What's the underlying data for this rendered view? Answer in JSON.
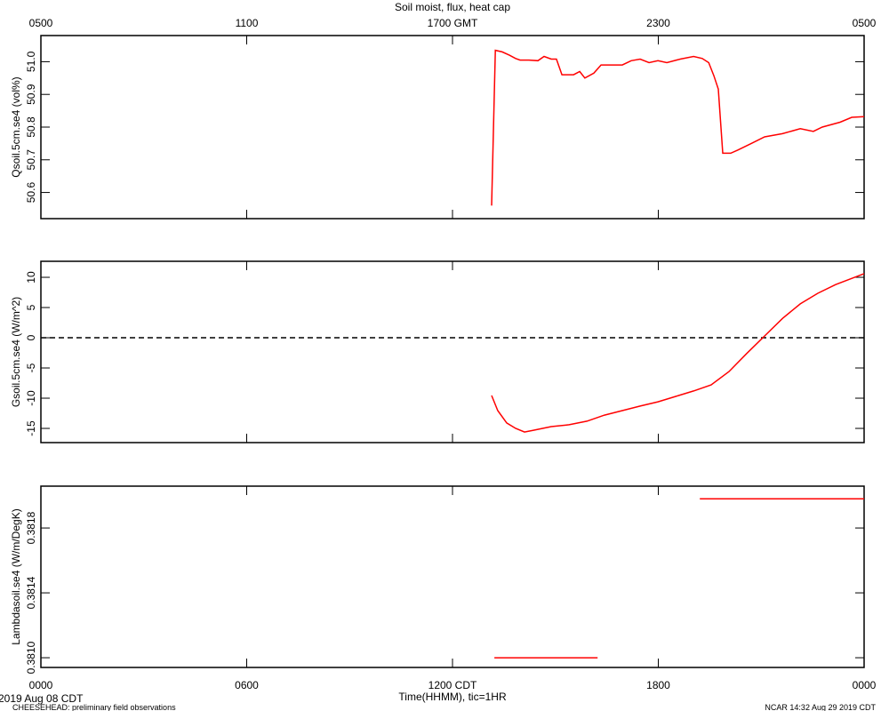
{
  "chart_data": [
    {
      "type": "line",
      "title": "Soil moist, flux, heat cap",
      "ylabel": "Qsoil.5cm.se4 (vol%)",
      "xlim": [
        0,
        24
      ],
      "ylim": [
        50.52,
        51.08
      ],
      "yticks": [
        50.6,
        50.7,
        50.8,
        50.9,
        {
          "value": 51,
          "label": "51.0"
        }
      ],
      "xticks_top": [
        {
          "value": 0,
          "label": "0500"
        },
        {
          "value": 6,
          "label": "1100"
        },
        {
          "value": 12,
          "label": "1700 GMT"
        },
        {
          "value": 18,
          "label": "2300"
        },
        {
          "value": 24,
          "label": "0500"
        }
      ],
      "series": [
        {
          "color": "#ff0000",
          "x": [
            13.14,
            13.25,
            13.45,
            13.66,
            13.84,
            13.97,
            14.23,
            14.49,
            14.67,
            14.88,
            15.03,
            15.19,
            15.53,
            15.71,
            15.86,
            16.12,
            16.33,
            16.95,
            17.21,
            17.47,
            17.73,
            17.99,
            18.25,
            18.64,
            19.03,
            19.28,
            19.47,
            19.62,
            19.75,
            19.88,
            20.11,
            20.32,
            20.71,
            21.1,
            21.62,
            22.14,
            22.52,
            22.78,
            23.3,
            23.64,
            24.0
          ],
          "values": [
            50.56,
            51.035,
            51.03,
            51.02,
            51.01,
            51.005,
            51.005,
            51.003,
            51.016,
            51.008,
            51.008,
            50.96,
            50.96,
            50.97,
            50.95,
            50.965,
            50.99,
            50.99,
            51.003,
            51.008,
            50.997,
            51.003,
            50.997,
            51.008,
            51.016,
            51.01,
            50.997,
            50.957,
            50.916,
            50.72,
            50.72,
            50.73,
            50.75,
            50.77,
            50.78,
            50.795,
            50.787,
            50.8,
            50.815,
            50.83,
            50.832
          ]
        }
      ]
    },
    {
      "type": "line",
      "ylabel": "Gsoil.5cm.se4 (W/m^2)",
      "xlim": [
        0,
        24
      ],
      "ylim": [
        -17.35,
        12.65
      ],
      "yticks": [
        -15,
        -10,
        -5,
        0,
        5,
        10
      ],
      "hline": 0,
      "series": [
        {
          "color": "#ff0000",
          "x": [
            13.14,
            13.32,
            13.58,
            13.84,
            14.1,
            14.36,
            14.88,
            15.4,
            15.92,
            16.43,
            16.95,
            17.47,
            17.99,
            18.51,
            19.03,
            19.54,
            20.06,
            20.58,
            21.1,
            21.62,
            22.14,
            22.65,
            23.17,
            24.0
          ],
          "values": [
            -9.56,
            -12.06,
            -14.1,
            -15.0,
            -15.6,
            -15.3,
            -14.7,
            -14.4,
            -13.8,
            -12.8,
            -12.06,
            -11.3,
            -10.6,
            -9.7,
            -8.8,
            -7.8,
            -5.6,
            -2.6,
            0.3,
            3.2,
            5.6,
            7.35,
            8.8,
            10.6
          ]
        }
      ]
    },
    {
      "type": "line",
      "ylabel": "Lambdasoil.se4 (W/m/DegK)",
      "xlabel": "Time(HHMM), tic=1HR",
      "xlim": [
        0,
        24
      ],
      "ylim": [
        0.38094,
        0.382058
      ],
      "yticks": [
        {
          "value": 0.381,
          "label": "0.3810"
        },
        {
          "value": 0.3814,
          "label": "0.3814"
        },
        {
          "value": 0.3818,
          "label": "0.3818"
        }
      ],
      "xticks": [
        {
          "value": 0,
          "label": "0000"
        },
        {
          "value": 6,
          "label": "0600"
        },
        {
          "value": 12,
          "label": "1200 CDT"
        },
        {
          "value": 18,
          "label": "1800"
        },
        {
          "value": 24,
          "label": "0000"
        }
      ],
      "series": [
        {
          "color": "#ff0000",
          "x": [
            13.22,
            16.23,
            17.7,
            19.21,
            24.0
          ],
          "values": [
            0.381,
            0.381,
            null,
            0.38198,
            0.38198
          ]
        }
      ]
    }
  ],
  "date": "2019 Aug 08 CDT",
  "footer_left": "CHEESEHEAD: preliminary field observations",
  "footer_right": "NCAR 14:32 Aug 29 2019 CDT"
}
